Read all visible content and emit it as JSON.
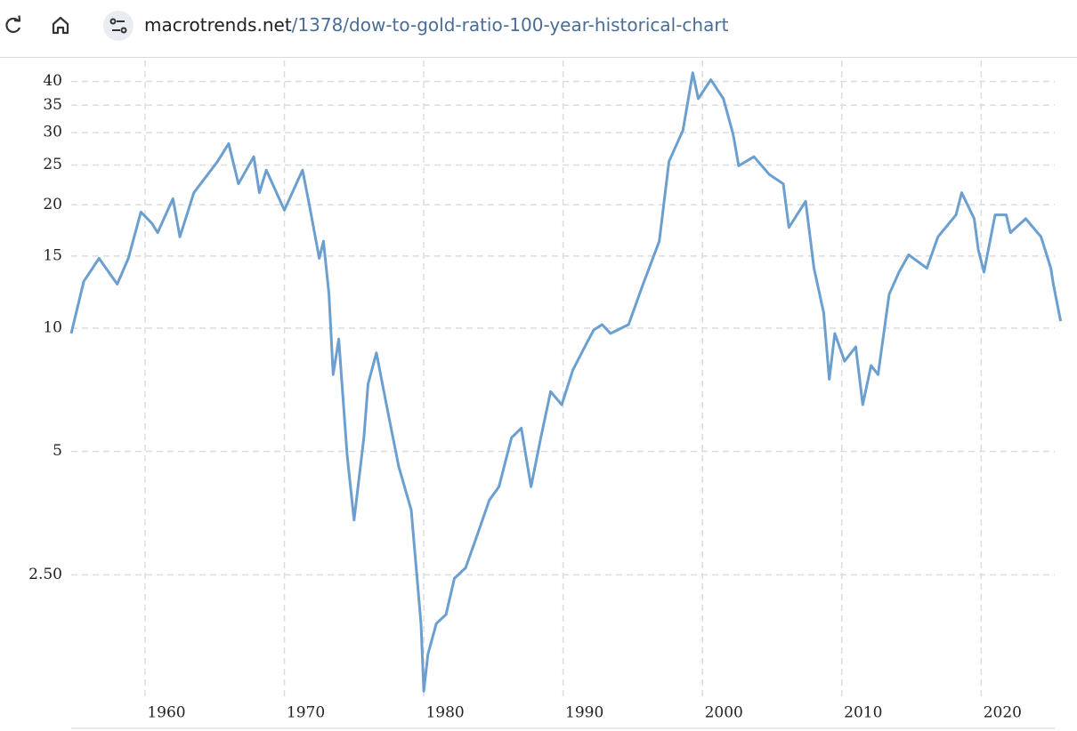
{
  "address": {
    "host": "macrotrends.net",
    "path": "/1378/dow-to-gold-ratio-100-year-historical-chart"
  },
  "chart_data": {
    "type": "line",
    "log_scale": true,
    "grid": true,
    "x": [
      1954.7,
      1955.6,
      1956.7,
      1957.2,
      1958.0,
      1958.8,
      1959.7,
      1960.5,
      1960.9,
      1962.0,
      1962.5,
      1963.5,
      1965.2,
      1966.0,
      1966.7,
      1967.8,
      1968.2,
      1968.7,
      1970.0,
      1971.3,
      1971.8,
      1972.5,
      1972.8,
      1973.2,
      1973.5,
      1973.9,
      1974.5,
      1975.0,
      1975.7,
      1976.0,
      1976.6,
      1977.4,
      1978.2,
      1979.1,
      1979.8,
      1980.0,
      1980.3,
      1980.9,
      1981.6,
      1982.2,
      1983.0,
      1983.8,
      1984.7,
      1985.4,
      1986.3,
      1987.0,
      1987.7,
      1988.4,
      1989.1,
      1989.9,
      1990.7,
      1991.7,
      1992.2,
      1992.8,
      1993.4,
      1994.7,
      1995.7,
      1996.9,
      1997.6,
      1998.6,
      1999.3,
      1999.7,
      2000.6,
      2001.5,
      2002.2,
      2002.6,
      2003.7,
      2004.8,
      2005.8,
      2006.2,
      2007.4,
      2008.0,
      2008.7,
      2009.1,
      2009.5,
      2010.2,
      2011.0,
      2011.5,
      2012.1,
      2012.6,
      2013.4,
      2014.1,
      2014.8,
      2016.1,
      2016.9,
      2018.2,
      2018.6,
      2019.5,
      2019.8,
      2020.2,
      2021.0,
      2021.8,
      2022.1,
      2023.2,
      2024.3,
      2025.0,
      2025.2,
      2025.7
    ],
    "series": [
      {
        "color": "#6b9fcf",
        "values": [
          9.7,
          13.0,
          14.8,
          14.0,
          12.8,
          14.8,
          19.2,
          18.0,
          17.1,
          20.7,
          16.7,
          21.4,
          25.5,
          28.2,
          22.5,
          26.2,
          21.4,
          24.3,
          19.4,
          24.3,
          19.9,
          14.8,
          16.3,
          12.1,
          7.7,
          9.4,
          4.9,
          3.4,
          5.4,
          7.3,
          8.7,
          6.3,
          4.6,
          3.6,
          1.9,
          1.3,
          1.6,
          1.9,
          2.0,
          2.45,
          2.6,
          3.1,
          3.8,
          4.1,
          5.4,
          5.7,
          4.1,
          5.4,
          7.0,
          6.5,
          7.9,
          9.2,
          9.9,
          10.2,
          9.7,
          10.2,
          12.7,
          16.3,
          25.5,
          30.4,
          42.0,
          36.3,
          40.4,
          36.3,
          29.7,
          24.9,
          26.2,
          23.7,
          22.5,
          17.6,
          20.4,
          14.0,
          10.9,
          7.5,
          9.7,
          8.3,
          9.0,
          6.5,
          8.1,
          7.7,
          12.1,
          13.7,
          15.1,
          14.0,
          16.7,
          18.9,
          21.4,
          18.5,
          15.5,
          13.7,
          18.9,
          18.9,
          17.1,
          18.5,
          16.7,
          14.0,
          12.7,
          10.4
        ]
      }
    ],
    "xlim": [
      1954.7,
      2025.6
    ],
    "xticks": [
      1960,
      1970,
      1980,
      1990,
      2000,
      2010,
      2020
    ],
    "ylim": [
      1.25,
      45
    ],
    "yticks": [
      {
        "value": 2.5,
        "label": "2.50"
      },
      5,
      10,
      15,
      20,
      25,
      30,
      35,
      40
    ]
  }
}
